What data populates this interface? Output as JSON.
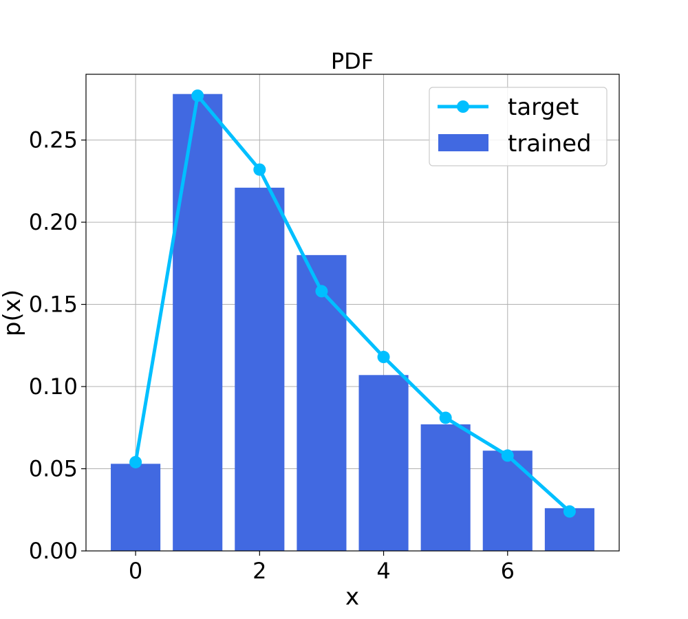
{
  "chart_data": {
    "type": "bar",
    "title": "PDF",
    "xlabel": "x",
    "ylabel": "p(x)",
    "x": [
      0,
      1,
      2,
      3,
      4,
      5,
      6,
      7
    ],
    "xlim": [
      -0.8,
      7.8
    ],
    "ylim": [
      0,
      0.29
    ],
    "xticks": [
      0,
      2,
      4,
      6
    ],
    "xtick_labels": [
      "0",
      "2",
      "4",
      "6"
    ],
    "yticks": [
      0,
      0.05,
      0.1,
      0.15,
      0.2,
      0.25
    ],
    "ytick_labels": [
      "0.00",
      "0.05",
      "0.10",
      "0.15",
      "0.20",
      "0.25"
    ],
    "grid": true,
    "legend_position": "top-right",
    "series": [
      {
        "name": "target",
        "kind": "line",
        "marker": "circle",
        "color": "#00bfff",
        "values": [
          0.054,
          0.277,
          0.232,
          0.158,
          0.118,
          0.081,
          0.058,
          0.024
        ]
      },
      {
        "name": "trained",
        "kind": "bar",
        "color": "#4169e1",
        "values": [
          0.053,
          0.278,
          0.221,
          0.18,
          0.107,
          0.077,
          0.061,
          0.026
        ]
      }
    ]
  }
}
